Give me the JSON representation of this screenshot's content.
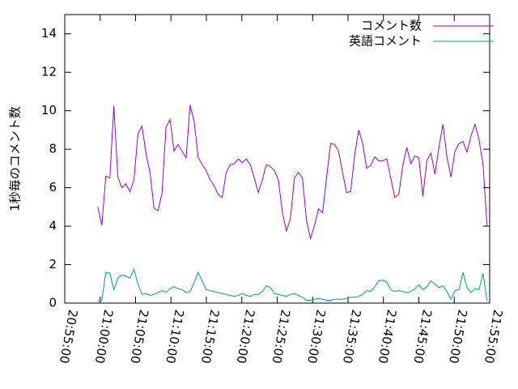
{
  "chart_data": {
    "type": "line",
    "y_label": "1秒毎のコメント数",
    "x": [
      "20:59:40",
      "21:00:14",
      "21:00:48",
      "21:01:22",
      "21:01:56",
      "21:02:30",
      "21:03:04",
      "21:03:38",
      "21:04:12",
      "21:04:46",
      "21:05:20",
      "21:05:54",
      "21:06:28",
      "21:07:02",
      "21:07:36",
      "21:08:10",
      "21:08:44",
      "21:09:18",
      "21:09:52",
      "21:10:26",
      "21:11:00",
      "21:11:34",
      "21:12:08",
      "21:12:42",
      "21:13:16",
      "21:13:50",
      "21:14:24",
      "21:14:58",
      "21:15:32",
      "21:16:06",
      "21:16:40",
      "21:17:14",
      "21:17:48",
      "21:18:22",
      "21:18:56",
      "21:19:30",
      "21:20:04",
      "21:20:38",
      "21:21:12",
      "21:21:46",
      "21:22:20",
      "21:22:54",
      "21:23:28",
      "21:24:02",
      "21:24:36",
      "21:25:10",
      "21:25:44",
      "21:26:18",
      "21:26:52",
      "21:27:26",
      "21:28:00",
      "21:28:34",
      "21:29:08",
      "21:29:42",
      "21:30:16",
      "21:30:50",
      "21:31:24",
      "21:31:58",
      "21:32:32",
      "21:33:06",
      "21:33:40",
      "21:34:14",
      "21:34:48",
      "21:35:22",
      "21:35:56",
      "21:36:30",
      "21:37:04",
      "21:37:38",
      "21:38:12",
      "21:38:46",
      "21:39:20",
      "21:39:54",
      "21:40:28",
      "21:41:02",
      "21:41:36",
      "21:42:10",
      "21:42:44",
      "21:43:18",
      "21:43:52",
      "21:44:26",
      "21:45:00",
      "21:45:34",
      "21:46:08",
      "21:46:42",
      "21:47:16",
      "21:47:50",
      "21:48:24",
      "21:48:58",
      "21:49:32",
      "21:50:06",
      "21:50:40",
      "21:51:14",
      "21:51:48",
      "21:52:22",
      "21:52:56",
      "21:53:30",
      "21:54:04",
      "21:54:38"
    ],
    "series": [
      {
        "name": "コメント数",
        "color": "#9400d3",
        "values": [
          5.0,
          4.05,
          6.6,
          6.5,
          10.25,
          6.55,
          6.0,
          6.2,
          5.8,
          6.4,
          8.8,
          9.2,
          7.8,
          6.8,
          4.95,
          4.8,
          5.7,
          9.15,
          9.55,
          7.9,
          8.25,
          7.9,
          7.55,
          10.3,
          9.45,
          7.6,
          7.2,
          6.9,
          6.4,
          6.1,
          5.65,
          5.5,
          6.8,
          7.2,
          7.25,
          7.5,
          7.3,
          7.5,
          7.2,
          6.5,
          5.75,
          6.4,
          7.2,
          7.1,
          6.9,
          6.4,
          4.7,
          3.75,
          4.4,
          6.5,
          6.8,
          6.5,
          4.3,
          3.35,
          4.05,
          4.9,
          4.7,
          6.5,
          8.3,
          8.25,
          7.9,
          6.8,
          5.75,
          5.8,
          7.7,
          9.0,
          8.3,
          7.0,
          7.15,
          7.6,
          7.4,
          7.4,
          7.5,
          6.5,
          5.5,
          5.65,
          7.15,
          8.1,
          7.25,
          7.65,
          7.55,
          5.55,
          7.4,
          7.8,
          6.7,
          8.1,
          9.3,
          7.6,
          6.55,
          7.9,
          8.3,
          8.4,
          7.85,
          8.7,
          9.3,
          8.5,
          7.2,
          4.0
        ]
      },
      {
        "name": "英語コメント",
        "color": "#009e73",
        "values": [
          0.1,
          0.15,
          1.6,
          1.55,
          0.7,
          1.3,
          1.45,
          1.4,
          1.3,
          1.75,
          1.0,
          0.45,
          0.5,
          0.4,
          0.45,
          0.55,
          0.65,
          0.55,
          0.75,
          0.85,
          0.75,
          0.7,
          0.55,
          0.6,
          1.05,
          1.6,
          1.15,
          0.7,
          0.65,
          0.6,
          0.55,
          0.5,
          0.45,
          0.4,
          0.35,
          0.4,
          0.5,
          0.4,
          0.35,
          0.45,
          0.45,
          0.6,
          0.9,
          0.8,
          0.5,
          0.45,
          0.4,
          0.35,
          0.45,
          0.5,
          0.4,
          0.3,
          0.15,
          0.15,
          0.2,
          0.25,
          0.2,
          0.15,
          0.15,
          0.2,
          0.2,
          0.2,
          0.25,
          0.3,
          0.3,
          0.35,
          0.45,
          0.65,
          0.6,
          0.85,
          1.15,
          1.2,
          1.1,
          0.7,
          0.6,
          0.65,
          0.6,
          0.55,
          0.6,
          0.75,
          0.95,
          0.7,
          0.85,
          1.15,
          1.0,
          0.8,
          0.9,
          0.6,
          0.2,
          0.65,
          0.7,
          1.6,
          0.8,
          0.55,
          0.75,
          0.7,
          1.55,
          0.1
        ]
      }
    ],
    "xlim": [
      "20:55:00",
      "21:55:00"
    ],
    "xticks": [
      "20:55:00",
      "21:00:00",
      "21:05:00",
      "21:10:00",
      "21:15:00",
      "21:20:00",
      "21:25:00",
      "21:30:00",
      "21:35:00",
      "21:40:00",
      "21:45:00",
      "21:50:00",
      "21:55:00"
    ],
    "ylim": [
      0,
      15
    ],
    "yticks": [
      0,
      2,
      4,
      6,
      8,
      10,
      12,
      14
    ],
    "legend": "top-right",
    "grid": false
  }
}
